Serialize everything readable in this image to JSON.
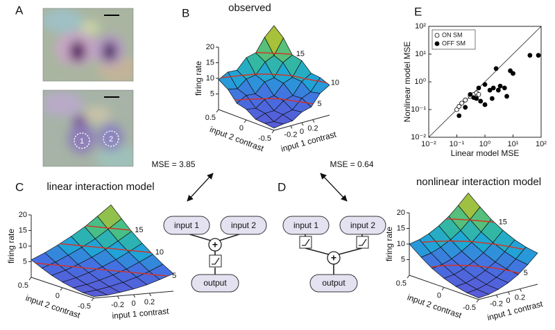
{
  "panel_letters": [
    "A",
    "B",
    "C",
    "D",
    "E"
  ],
  "panel_a": {
    "roi_labels": [
      "1",
      "2"
    ]
  },
  "comparisons": [
    "MSE = 3.85",
    "MSE = 0.64"
  ],
  "diagram_c": {
    "inputs": [
      "input 1",
      "input 2"
    ],
    "operator": "+",
    "output": "output"
  },
  "diagram_d": {
    "inputs": [
      "input 1",
      "input 2"
    ],
    "operator": "+",
    "output": "output"
  },
  "chart_data": [
    {
      "type": "surface",
      "title": "observed",
      "zlabel": "firing rate",
      "xlabel": "input 1 contrast",
      "ylabel": "input 2 contrast",
      "x": [
        -0.5,
        -0.33,
        -0.17,
        0,
        0.17,
        0.33,
        0.5
      ],
      "y": [
        -0.5,
        -0.33,
        -0.17,
        0,
        0.17,
        0.33,
        0.5
      ],
      "xlim": [
        -0.5,
        0.5
      ],
      "ylim": [
        -0.5,
        0.5
      ],
      "zlim": [
        0,
        20
      ],
      "xticks": [
        -0.2,
        0,
        0.2
      ],
      "yticks": [
        -0.5,
        0,
        0.5
      ],
      "zticks": [
        5,
        10,
        15,
        20
      ],
      "contour_levels": [
        15,
        10,
        5
      ],
      "z": [
        [
          0.7,
          1.2,
          1.4,
          3.4,
          4.2,
          7.8,
          9.6
        ],
        [
          1.1,
          0.8,
          2.3,
          3.0,
          5.9,
          7.1,
          10.9
        ],
        [
          1.3,
          2.4,
          2.5,
          4.8,
          5.7,
          9.4,
          11.2
        ],
        [
          3.4,
          2.9,
          4.9,
          5.3,
          8.5,
          9.6,
          14.1
        ],
        [
          4.2,
          5.9,
          5.6,
          8.6,
          9.1,
          13.2,
          14.8
        ],
        [
          7.6,
          7.0,
          9.3,
          9.8,
          13.1,
          14.4,
          19.2
        ],
        [
          9.6,
          11.2,
          11.0,
          14.2,
          14.9,
          19.1,
          22.0
        ]
      ]
    },
    {
      "type": "surface",
      "title": "linear interaction model",
      "zlabel": "firing rate",
      "xlabel": "input 1 contrast",
      "ylabel": "input 2 contrast",
      "x": [
        -0.5,
        -0.33,
        -0.17,
        0,
        0.17,
        0.33,
        0.5
      ],
      "y": [
        -0.5,
        -0.33,
        -0.17,
        0,
        0.17,
        0.33,
        0.5
      ],
      "xlim": [
        -0.5,
        0.5
      ],
      "ylim": [
        -0.5,
        0.5
      ],
      "zlim": [
        0,
        20
      ],
      "xticks": [
        -0.2,
        0,
        0.2
      ],
      "yticks": [
        -0.5,
        0,
        0.5
      ],
      "zticks": [
        5,
        10,
        15,
        20
      ],
      "contour_levels": [
        15,
        10,
        5
      ],
      "z": [
        [
          0.5,
          0.6,
          1.1,
          1.8,
          2.8,
          4.1,
          5.6
        ],
        [
          0.6,
          1.1,
          1.8,
          2.8,
          4.1,
          5.6,
          7.5
        ],
        [
          1.1,
          1.8,
          2.8,
          4.1,
          5.6,
          7.5,
          9.6
        ],
        [
          1.8,
          2.8,
          4.1,
          5.6,
          7.5,
          9.6,
          12.0
        ],
        [
          2.8,
          4.1,
          5.6,
          7.5,
          9.6,
          12.0,
          14.7
        ],
        [
          4.1,
          5.6,
          7.5,
          9.6,
          12.0,
          14.7,
          17.7
        ],
        [
          5.6,
          7.5,
          9.6,
          12.0,
          14.7,
          17.7,
          21.0
        ]
      ]
    },
    {
      "type": "surface",
      "title": "nonlinear interaction model",
      "zlabel": "firing rate",
      "xlabel": "input 1 contrast",
      "ylabel": "input 2 contrast",
      "x": [
        -0.5,
        -0.33,
        -0.17,
        0,
        0.17,
        0.33,
        0.5
      ],
      "y": [
        -0.5,
        -0.33,
        -0.17,
        0,
        0.17,
        0.33,
        0.5
      ],
      "xlim": [
        -0.5,
        0.5
      ],
      "ylim": [
        -0.5,
        0.5
      ],
      "zlim": [
        0,
        20
      ],
      "xticks": [
        -0.2,
        0,
        0.2
      ],
      "yticks": [
        -0.5,
        0,
        0.5
      ],
      "zticks": [
        5,
        10,
        15,
        20
      ],
      "contour_levels": [
        15,
        10,
        5
      ],
      "z": [
        [
          0.5,
          0.8,
          1.6,
          2.9,
          4.7,
          7.1,
          10.0
        ],
        [
          0.8,
          1.1,
          1.9,
          3.3,
          5.2,
          7.6,
          10.6
        ],
        [
          1.6,
          1.9,
          2.8,
          4.3,
          6.2,
          8.7,
          11.7
        ],
        [
          2.9,
          3.3,
          4.3,
          5.8,
          7.8,
          10.3,
          13.4
        ],
        [
          4.7,
          5.2,
          6.2,
          7.8,
          9.8,
          12.4,
          15.6
        ],
        [
          7.1,
          7.6,
          8.7,
          10.3,
          12.4,
          15.1,
          18.3
        ],
        [
          10.0,
          10.6,
          11.7,
          13.4,
          15.6,
          18.3,
          21.5
        ]
      ]
    },
    {
      "type": "scatter",
      "xlabel": "Linear model MSE",
      "ylabel": "Nonlinear model MSE",
      "log": true,
      "legend": "upper left",
      "xlim": [
        0.01,
        100
      ],
      "ylim": [
        0.01,
        100
      ],
      "xticks": [
        {
          "value": 0.01,
          "label": "10⁻²"
        },
        {
          "value": 0.1,
          "label": "10⁻¹"
        },
        {
          "value": 1,
          "label": "10⁰"
        },
        {
          "value": 10,
          "label": "10¹"
        },
        {
          "value": 100,
          "label": "10²"
        }
      ],
      "yticks": [
        {
          "value": 0.01,
          "label": "10⁻²"
        },
        {
          "value": 0.1,
          "label": "10⁻¹"
        },
        {
          "value": 1,
          "label": "10⁰"
        },
        {
          "value": 10,
          "label": "10¹"
        },
        {
          "value": 100,
          "label": "10²"
        }
      ],
      "series": [
        {
          "name": "ON SM",
          "color": "#000000",
          "marker": "open",
          "x": [
            0.1,
            0.12,
            0.15,
            0.2,
            0.3,
            0.4,
            0.5,
            0.6
          ],
          "values": [
            0.1,
            0.13,
            0.17,
            0.22,
            0.3,
            0.35,
            0.4,
            0.35
          ]
        },
        {
          "name": "OFF SM",
          "color": "#000000",
          "marker": "filled",
          "x": [
            0.12,
            0.2,
            0.3,
            0.4,
            0.5,
            0.6,
            0.7,
            1,
            1,
            1.5,
            1.8,
            2,
            2.5,
            3,
            3.5,
            5,
            6,
            8,
            10,
            40,
            80
          ],
          "values": [
            0.06,
            0.12,
            0.35,
            0.27,
            0.25,
            0.6,
            0.2,
            0.15,
            0.8,
            0.5,
            0.25,
            0.6,
            3,
            0.5,
            0.7,
            0.6,
            0.3,
            2.5,
            2,
            9,
            9
          ]
        }
      ]
    }
  ]
}
